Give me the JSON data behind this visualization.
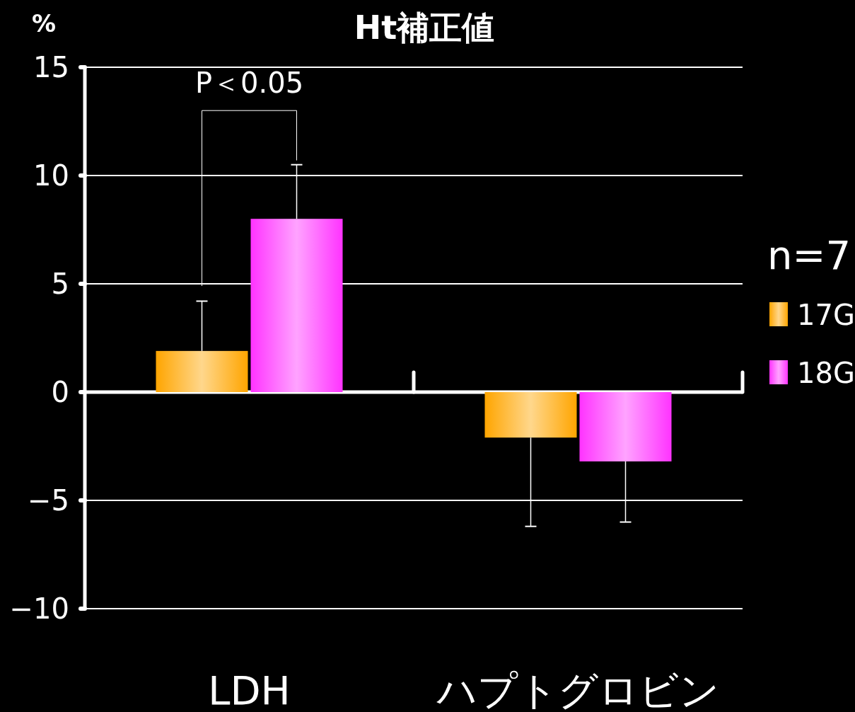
{
  "chart_data": {
    "type": "bar",
    "title": "Ht補正値",
    "ylabel": "%",
    "legend_title": "n=7",
    "categories": [
      "LDH",
      "ハプトグロビン"
    ],
    "series": [
      {
        "name": "17G",
        "color": "#ffa500",
        "values": [
          1.9,
          -2.1
        ],
        "errors": [
          [
            1.9,
            4.2
          ],
          [
            -6.2,
            -2.1
          ]
        ]
      },
      {
        "name": "18G",
        "color": "#ff33ff",
        "values": [
          8.0,
          -3.2
        ],
        "errors": [
          [
            8.0,
            10.5
          ],
          [
            -6.0,
            -3.2
          ]
        ]
      }
    ],
    "ylim": [
      -10,
      15
    ],
    "yticks": [
      -10,
      -5,
      0,
      5,
      10,
      15
    ],
    "grid": "y",
    "legend": "right",
    "annotations": [
      "P＜0.05"
    ]
  }
}
